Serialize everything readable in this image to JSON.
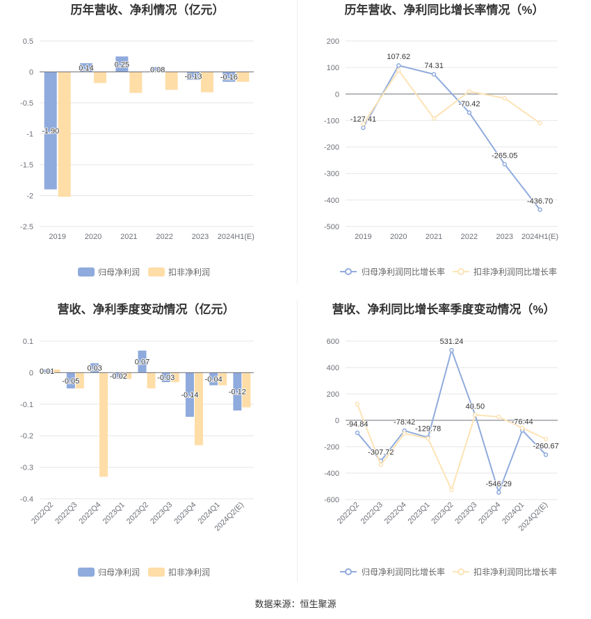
{
  "footer": {
    "source": "数据来源：恒生聚源"
  },
  "chart_data": [
    {
      "type": "bar",
      "title": "历年营收、净利情况（亿元）",
      "categories": [
        "2019",
        "2020",
        "2021",
        "2022",
        "2023",
        "2024H1(E)"
      ],
      "ylim": [
        -2.5,
        0.5
      ],
      "yticks": [
        "0.5",
        "0",
        "-0.5",
        "-1",
        "-1.5",
        "-2",
        "-2.5"
      ],
      "grid": true,
      "legend": "bottom",
      "series": [
        {
          "name": "归母净利润",
          "color": "#8faadc",
          "values": [
            -1.9,
            0.14,
            0.25,
            0.08,
            -0.13,
            -0.16
          ],
          "labels": [
            "-1.90",
            "0.14",
            "0.25",
            "0.08",
            "-0.13",
            "-0.16"
          ]
        },
        {
          "name": "扣非净利润",
          "color": "#fedda7",
          "values": [
            -2.02,
            -0.18,
            -0.34,
            -0.29,
            -0.33,
            -0.16
          ]
        }
      ]
    },
    {
      "type": "line",
      "title": "历年营收、净利同比增长率情况（%）",
      "categories": [
        "2019",
        "2020",
        "2021",
        "2022",
        "2023",
        "2024H1(E)"
      ],
      "ylim": [
        -500,
        200
      ],
      "yticks": [
        "200",
        "100",
        "0",
        "-100",
        "-200",
        "-300",
        "-400",
        "-500"
      ],
      "grid": true,
      "legend": "bottom",
      "series": [
        {
          "name": "归母净利润同比增长率",
          "color": "#8faadc",
          "values": [
            -127.41,
            107.62,
            74.31,
            -70.42,
            -265.05,
            -436.7
          ],
          "labels": [
            "-127.41",
            "107.62",
            "74.31",
            "-70.42",
            "-265.05",
            "-436.70"
          ]
        },
        {
          "name": "扣非净利润同比增长率",
          "color": "#fde3b5",
          "values": [
            -113,
            89,
            -92,
            10,
            -16,
            -110
          ]
        }
      ]
    },
    {
      "type": "bar",
      "title": "营收、净利季度变动情况（亿元）",
      "categories": [
        "2022Q2",
        "2022Q3",
        "2022Q4",
        "2023Q1",
        "2023Q2",
        "2023Q3",
        "2023Q4",
        "2024Q1",
        "2024Q2(E)"
      ],
      "ylim": [
        -0.4,
        0.1
      ],
      "yticks": [
        "0.1",
        "0",
        "-0.1",
        "-0.2",
        "-0.3",
        "-0.4"
      ],
      "grid": true,
      "legend": "bottom",
      "series": [
        {
          "name": "归母净利润",
          "color": "#8faadc",
          "values": [
            0.01,
            -0.05,
            0.03,
            -0.02,
            0.07,
            -0.03,
            -0.14,
            -0.04,
            -0.12
          ],
          "labels": [
            "0.01",
            "-0.05",
            "0.03",
            "-0.02",
            "0.07",
            "-0.03",
            "-0.14",
            "-0.04",
            "-0.12"
          ]
        },
        {
          "name": "扣非净利润",
          "color": "#fedda7",
          "values": [
            0.01,
            -0.05,
            -0.33,
            -0.02,
            -0.05,
            -0.03,
            -0.23,
            -0.04,
            -0.11
          ]
        }
      ]
    },
    {
      "type": "line",
      "title": "营收、净利同比增长率季度变动情况（%）",
      "categories": [
        "2022Q2",
        "2022Q3",
        "2022Q4",
        "2023Q1",
        "2023Q2",
        "2023Q3",
        "2023Q4",
        "2024Q1",
        "2024Q2(E)"
      ],
      "ylim": [
        -600,
        600
      ],
      "yticks": [
        "600",
        "400",
        "200",
        "0",
        "-200",
        "-400",
        "-600"
      ],
      "grid": true,
      "legend": "bottom",
      "series": [
        {
          "name": "归母净利润同比增长率",
          "color": "#8faadc",
          "values": [
            -94.84,
            -307.72,
            -78.42,
            -129.78,
            531.24,
            40.5,
            -546.29,
            -76.44,
            -260.67
          ],
          "labels": [
            "-94.84",
            "-307.72",
            "-78.42",
            "-129.78",
            "531.24",
            "40.50",
            "-546.29",
            "-76.44",
            "-260.67"
          ]
        },
        {
          "name": "扣非净利润同比增长率",
          "color": "#fde3b5",
          "values": [
            122,
            -337,
            -100,
            -137,
            -527,
            42,
            26,
            -58,
            -142
          ]
        }
      ]
    }
  ]
}
